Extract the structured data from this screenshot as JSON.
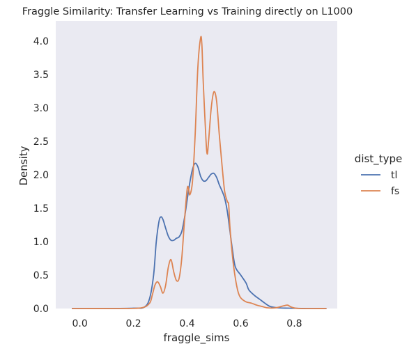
{
  "chart_data": {
    "type": "line",
    "title": "Fraggle Similarity: Transfer Learning vs Training directly on L1000",
    "xlabel": "fraggle_sims",
    "ylabel": "Density",
    "xlim": [
      -0.09,
      0.96
    ],
    "ylim": [
      0,
      4.3
    ],
    "xticks": [
      0.0,
      0.2,
      0.4,
      0.6,
      0.8
    ],
    "xtick_labels": [
      "0.0",
      "0.2",
      "0.4",
      "0.6",
      "0.8"
    ],
    "yticks": [
      0.0,
      0.5,
      1.0,
      1.5,
      2.0,
      2.5,
      3.0,
      3.5,
      4.0
    ],
    "ytick_labels": [
      "0.0",
      "0.5",
      "1.0",
      "1.5",
      "2.0",
      "2.5",
      "3.0",
      "3.5",
      "4.0"
    ],
    "grid": false,
    "legend": {
      "title": "dist_type",
      "placement": "right"
    },
    "series": [
      {
        "name": "tl",
        "color": "#4c72b0",
        "points": [
          [
            -0.03,
            0.0
          ],
          [
            0.1,
            0.0
          ],
          [
            0.2,
            0.005
          ],
          [
            0.24,
            0.02
          ],
          [
            0.26,
            0.15
          ],
          [
            0.275,
            0.5
          ],
          [
            0.285,
            1.0
          ],
          [
            0.295,
            1.3
          ],
          [
            0.302,
            1.37
          ],
          [
            0.31,
            1.33
          ],
          [
            0.32,
            1.2
          ],
          [
            0.33,
            1.08
          ],
          [
            0.34,
            1.02
          ],
          [
            0.35,
            1.02
          ],
          [
            0.36,
            1.05
          ],
          [
            0.37,
            1.07
          ],
          [
            0.38,
            1.15
          ],
          [
            0.39,
            1.35
          ],
          [
            0.4,
            1.62
          ],
          [
            0.41,
            1.88
          ],
          [
            0.42,
            2.08
          ],
          [
            0.43,
            2.17
          ],
          [
            0.44,
            2.12
          ],
          [
            0.45,
            1.98
          ],
          [
            0.46,
            1.91
          ],
          [
            0.47,
            1.91
          ],
          [
            0.48,
            1.96
          ],
          [
            0.49,
            2.01
          ],
          [
            0.5,
            2.02
          ],
          [
            0.51,
            1.96
          ],
          [
            0.52,
            1.85
          ],
          [
            0.53,
            1.76
          ],
          [
            0.54,
            1.65
          ],
          [
            0.55,
            1.45
          ],
          [
            0.56,
            1.15
          ],
          [
            0.57,
            0.85
          ],
          [
            0.58,
            0.62
          ],
          [
            0.6,
            0.5
          ],
          [
            0.62,
            0.38
          ],
          [
            0.63,
            0.28
          ],
          [
            0.65,
            0.2
          ],
          [
            0.67,
            0.14
          ],
          [
            0.69,
            0.08
          ],
          [
            0.71,
            0.03
          ],
          [
            0.74,
            0.01
          ],
          [
            0.78,
            0.005
          ],
          [
            0.85,
            0.0
          ],
          [
            0.92,
            0.0
          ]
        ]
      },
      {
        "name": "fs",
        "color": "#dd8452",
        "points": [
          [
            -0.03,
            0.0
          ],
          [
            0.15,
            0.0
          ],
          [
            0.23,
            0.01
          ],
          [
            0.26,
            0.08
          ],
          [
            0.27,
            0.2
          ],
          [
            0.28,
            0.35
          ],
          [
            0.29,
            0.4
          ],
          [
            0.3,
            0.33
          ],
          [
            0.31,
            0.23
          ],
          [
            0.32,
            0.35
          ],
          [
            0.33,
            0.62
          ],
          [
            0.34,
            0.73
          ],
          [
            0.35,
            0.55
          ],
          [
            0.36,
            0.42
          ],
          [
            0.37,
            0.45
          ],
          [
            0.38,
            0.75
          ],
          [
            0.39,
            1.3
          ],
          [
            0.4,
            1.78
          ],
          [
            0.405,
            1.8
          ],
          [
            0.41,
            1.7
          ],
          [
            0.42,
            1.9
          ],
          [
            0.43,
            2.6
          ],
          [
            0.44,
            3.6
          ],
          [
            0.45,
            4.04
          ],
          [
            0.455,
            3.95
          ],
          [
            0.46,
            3.4
          ],
          [
            0.47,
            2.55
          ],
          [
            0.475,
            2.31
          ],
          [
            0.48,
            2.5
          ],
          [
            0.49,
            3.0
          ],
          [
            0.5,
            3.24
          ],
          [
            0.51,
            3.1
          ],
          [
            0.52,
            2.6
          ],
          [
            0.53,
            2.15
          ],
          [
            0.54,
            1.75
          ],
          [
            0.55,
            1.6
          ],
          [
            0.555,
            1.55
          ],
          [
            0.56,
            1.2
          ],
          [
            0.57,
            0.75
          ],
          [
            0.58,
            0.45
          ],
          [
            0.59,
            0.25
          ],
          [
            0.6,
            0.16
          ],
          [
            0.62,
            0.1
          ],
          [
            0.64,
            0.08
          ],
          [
            0.66,
            0.05
          ],
          [
            0.68,
            0.03
          ],
          [
            0.7,
            0.01
          ],
          [
            0.73,
            0.01
          ],
          [
            0.76,
            0.04
          ],
          [
            0.775,
            0.05
          ],
          [
            0.79,
            0.02
          ],
          [
            0.82,
            0.0
          ],
          [
            0.92,
            0.0
          ]
        ]
      }
    ]
  }
}
